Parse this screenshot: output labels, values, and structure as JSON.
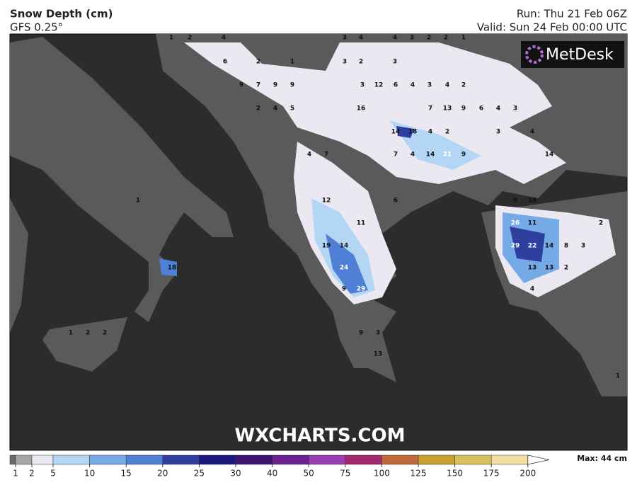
{
  "header": {
    "title": "Snow Depth (cm)",
    "subtitle": "GFS 0.25°",
    "run": "Run: Thu 21 Feb 06Z",
    "valid": "Valid: Sun 24 Feb 00:00 UTC"
  },
  "logo": "MetDesk",
  "watermark": "WXCHARTS.COM",
  "max_label": "Max: 44 cm",
  "labels": [
    1,
    2,
    4,
    3,
    4,
    4,
    3,
    2,
    2,
    1,
    6,
    2,
    1,
    3,
    2,
    3,
    9,
    7,
    9,
    9,
    3,
    12,
    6,
    4,
    3,
    4,
    2,
    2,
    4,
    5,
    16,
    7,
    13,
    9,
    6,
    4,
    3,
    14,
    18,
    4,
    2,
    3,
    4,
    4,
    7,
    7,
    4,
    14,
    21,
    9,
    14,
    1,
    12,
    6,
    9,
    18,
    11,
    26,
    11,
    2,
    19,
    14,
    29,
    22,
    14,
    8,
    3,
    18,
    24,
    13,
    13,
    2,
    29,
    9,
    4,
    9,
    3,
    13,
    1,
    1,
    2,
    2
  ],
  "colorbar": {
    "ticks": [
      1,
      2,
      5,
      10,
      15,
      20,
      25,
      30,
      40,
      50,
      75,
      100,
      125,
      150,
      175,
      200
    ],
    "colors": [
      "#a6a6a6",
      "#ece8f2",
      "#b4d6f5",
      "#76aae6",
      "#4f80d6",
      "#2f3fa0",
      "#1c1680",
      "#3d1270",
      "#6b2290",
      "#9b3cb2",
      "#a3286e",
      "#c06a3a",
      "#c8a030",
      "#d6c05a",
      "#f2dea4"
    ]
  }
}
